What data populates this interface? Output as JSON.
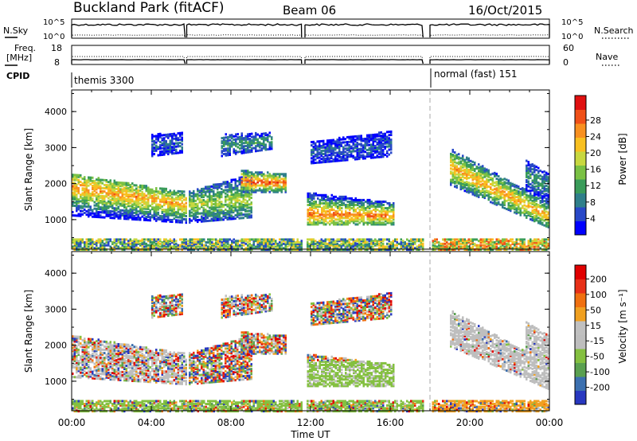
{
  "header": {
    "title": "Buckland Park (fitACF)",
    "beam": "Beam 06",
    "date": "16/Oct/2015"
  },
  "top_panels": {
    "nsky_label": "N.Sky",
    "nsky_ticks": [
      "10^5",
      "10^0"
    ],
    "nsearch_label": "N.Search",
    "nsearch_ticks": [
      "10^5",
      "10^0"
    ],
    "freq_label_1": "Freq.",
    "freq_label_2": "[MHz]",
    "freq_ticks": [
      "18",
      "8"
    ],
    "nave_label": "Nave",
    "nave_ticks": [
      "60",
      "0"
    ],
    "cpid_label": "CPID",
    "cpid_modes": [
      {
        "name": "themis 3300",
        "start_hour": 0
      },
      {
        "name": "normal (fast) 151",
        "start_hour": 18.0
      }
    ],
    "data_gaps_hours": [
      [
        5.7,
        5.78
      ],
      [
        11.55,
        11.72
      ],
      [
        17.65,
        18.0
      ]
    ]
  },
  "chart_data": [
    {
      "type": "heatmap",
      "name": "power-panel",
      "ylabel": "Slant Range [km]",
      "yticks": [
        1000,
        2000,
        3000,
        4000
      ],
      "ylim": [
        180,
        4600
      ],
      "xticks": [
        "00:00",
        "04:00",
        "08:00",
        "12:00",
        "16:00",
        "20:00",
        "00:00"
      ],
      "xlim_hours": [
        0,
        24
      ],
      "colorbar": {
        "label": "Power [dB]",
        "ticks": [
          "4",
          "8",
          "12",
          "16",
          "20",
          "24",
          "28"
        ],
        "range": [
          0,
          30
        ],
        "colors": [
          "#0000ff",
          "#2848c8",
          "#2f7f8a",
          "#3a9c5a",
          "#7ac144",
          "#c8d840",
          "#f8c020",
          "#f89020",
          "#f05018",
          "#e01010"
        ]
      },
      "echo_regions": [
        {
          "x": [
            0,
            5.7
          ],
          "range_lo": [
            1150,
            950
          ],
          "range_hi": [
            2300,
            1800
          ],
          "peak_range": [
            1950,
            1450
          ],
          "peak_db": 22
        },
        {
          "x": [
            5.78,
            9.0
          ],
          "range_lo": [
            950,
            1100
          ],
          "range_hi": [
            1800,
            2300
          ],
          "peak_range": [
            1450,
            1600
          ],
          "peak_db": 16
        },
        {
          "x": [
            8.5,
            10.7
          ],
          "range_lo": [
            1800,
            1800
          ],
          "range_hi": [
            2400,
            2300
          ],
          "peak_range": [
            2100,
            2050
          ],
          "peak_db": 26
        },
        {
          "x": [
            7.5,
            10.0
          ],
          "range_lo": [
            2800,
            3000
          ],
          "range_hi": [
            3400,
            3450
          ],
          "peak_range": [
            3100,
            3200
          ],
          "peak_db": 10
        },
        {
          "x": [
            4.0,
            5.5
          ],
          "range_lo": [
            2800,
            2900
          ],
          "range_hi": [
            3400,
            3450
          ],
          "peak_range": [
            3100,
            3150
          ],
          "peak_db": 6
        },
        {
          "x": [
            11.72,
            16.2
          ],
          "range_lo": [
            900,
            900
          ],
          "range_hi": [
            1800,
            1500
          ],
          "peak_range": [
            1200,
            1150
          ],
          "peak_db": 24
        },
        {
          "x": [
            12.0,
            16.0
          ],
          "range_lo": [
            2600,
            2800
          ],
          "range_hi": [
            3200,
            3500
          ],
          "peak_range": [
            2900,
            3100
          ],
          "peak_db": 6
        },
        {
          "x": [
            19.0,
            24.0
          ],
          "range_lo": [
            2000,
            800
          ],
          "range_hi": [
            3000,
            1500
          ],
          "peak_range": [
            2500,
            1100
          ],
          "peak_db": 22
        },
        {
          "x": [
            22.8,
            24.0
          ],
          "range_lo": [
            1900,
            1500
          ],
          "range_hi": [
            2700,
            2300
          ],
          "peak_range": [
            2300,
            1900
          ],
          "peak_db": 10
        }
      ],
      "near_range_band": {
        "range_lo": 200,
        "range_hi": 480,
        "typical_db": 12
      }
    },
    {
      "type": "heatmap",
      "name": "velocity-panel",
      "ylabel": "Slant Range [km]",
      "yticks": [
        1000,
        2000,
        3000,
        4000
      ],
      "ylim": [
        180,
        4600
      ],
      "xticks": [
        "00:00",
        "04:00",
        "08:00",
        "12:00",
        "16:00",
        "20:00",
        "00:00"
      ],
      "xlabel": "Time UT",
      "xlim_hours": [
        0,
        24
      ],
      "colorbar": {
        "label": "Velocity [m s⁻¹]",
        "ticks": [
          "200",
          "100",
          "50",
          "15",
          "-15",
          "-50",
          "-100",
          "-200"
        ],
        "colors": [
          "#2838c0",
          "#3c70b0",
          "#5aa050",
          "#84c040",
          "#bebebe",
          "#c0c0c0",
          "#f0a020",
          "#f07010",
          "#e83018",
          "#e00000"
        ]
      },
      "ground_scatter_color": "#bebebe",
      "fast_mode_overlay_text": "normal (fast) 151"
    }
  ]
}
